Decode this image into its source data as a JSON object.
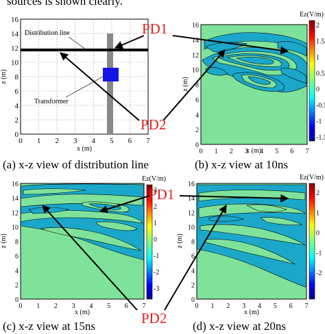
{
  "top_caption_fragment": "sources is shown clearly.",
  "panels": {
    "a": {
      "caption": "(a) x-z view of distribution line",
      "xlabel": "x (m)",
      "ylabel": "z (m)",
      "xticks": [
        "0",
        "1",
        "2",
        "3",
        "4",
        "5",
        "6",
        "7"
      ],
      "yticks": [
        "0",
        "2",
        "4",
        "6",
        "8",
        "10",
        "12",
        "14",
        "16"
      ],
      "distribution_line_label": "Distribution line",
      "transformer_label": "Transformer"
    },
    "b": {
      "caption": "(b) x-z view at 10ns",
      "xlabel": "x (m)",
      "ylabel": "z (m)",
      "colorbar_label": "Ez(V/m)",
      "xticks": [
        "0",
        "1",
        "2",
        "3",
        "4",
        "5",
        "6",
        "7"
      ],
      "yticks": [
        "0",
        "2",
        "4",
        "6",
        "8",
        "10",
        "12",
        "14",
        "16"
      ],
      "colorbar_ticks": [
        "2",
        "1.5",
        "1",
        "0.5",
        "0",
        "-0.5",
        "-1",
        "-1.5"
      ]
    },
    "c": {
      "caption": "(c) x-z view at 15ns",
      "xlabel": "x (m)",
      "ylabel": "z (m)",
      "colorbar_label": "Ez(V/m)",
      "xticks": [
        "0",
        "1",
        "2",
        "3",
        "4",
        "5",
        "6",
        "7"
      ],
      "yticks": [
        "0",
        "2",
        "4",
        "6",
        "8",
        "10",
        "12",
        "14",
        "16"
      ],
      "colorbar_ticks": [
        "3",
        "2",
        "1",
        "0",
        "-1",
        "-2",
        "-3"
      ]
    },
    "d": {
      "caption": "(d) x-z view at 20ns",
      "xlabel": "x (m)",
      "ylabel": "z (m)",
      "colorbar_label": "Ez(V/m)",
      "xticks": [
        "0",
        "1",
        "2",
        "3",
        "4",
        "5",
        "6",
        "7"
      ],
      "yticks": [
        "0",
        "2",
        "4",
        "6",
        "8",
        "10",
        "12",
        "14",
        "16"
      ],
      "colorbar_ticks": [
        "2",
        "1",
        "0",
        "-1",
        "-2"
      ]
    }
  },
  "pd_labels": {
    "pd1": "PD1",
    "pd2": "PD2"
  },
  "colors": {
    "field_background": "#7fe29a",
    "contour_fill": "#1aa7c9",
    "arrow": "#000000",
    "transformer": "#1414e6",
    "pole": "#888888",
    "pd_text": "#e0201f"
  }
}
